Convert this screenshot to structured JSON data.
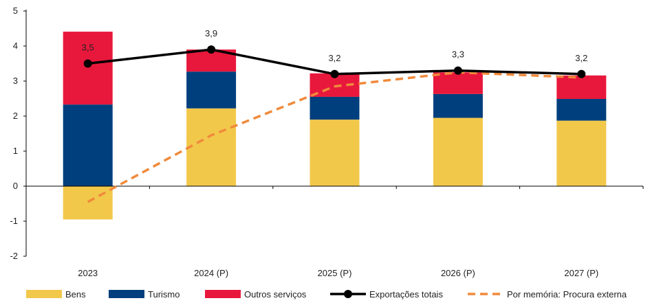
{
  "chart_data": {
    "type": "bar",
    "stacked": true,
    "categories": [
      "2023",
      "2024 (P)",
      "2025 (P)",
      "2026 (P)",
      "2027 (P)"
    ],
    "ylim": [
      -2,
      5
    ],
    "yticks": [
      -2,
      -1,
      0,
      1,
      2,
      3,
      4,
      5
    ],
    "series": [
      {
        "name": "Bens",
        "kind": "bar",
        "color": "#F2C84B",
        "values": [
          -0.95,
          2.22,
          1.9,
          1.95,
          1.87
        ]
      },
      {
        "name": "Turismo",
        "kind": "bar",
        "color": "#003F7D",
        "values": [
          2.33,
          1.05,
          0.65,
          0.68,
          0.62
        ]
      },
      {
        "name": "Outros serviços",
        "kind": "bar",
        "color": "#E8183C",
        "values": [
          2.08,
          0.63,
          0.67,
          0.62,
          0.67
        ]
      },
      {
        "name": "Exportações totais",
        "kind": "line",
        "color": "#000000",
        "values": [
          3.5,
          3.9,
          3.2,
          3.3,
          3.2
        ],
        "data_labels": [
          "3,5",
          "3,9",
          "3,2",
          "3,3",
          "3,2"
        ]
      },
      {
        "name": "Por memória: Procura externa",
        "kind": "line-dashed",
        "color": "#F08A3C",
        "values": [
          -0.45,
          1.45,
          2.85,
          3.25,
          3.1
        ]
      }
    ],
    "legend": {
      "position": "bottom"
    },
    "grid": false
  }
}
